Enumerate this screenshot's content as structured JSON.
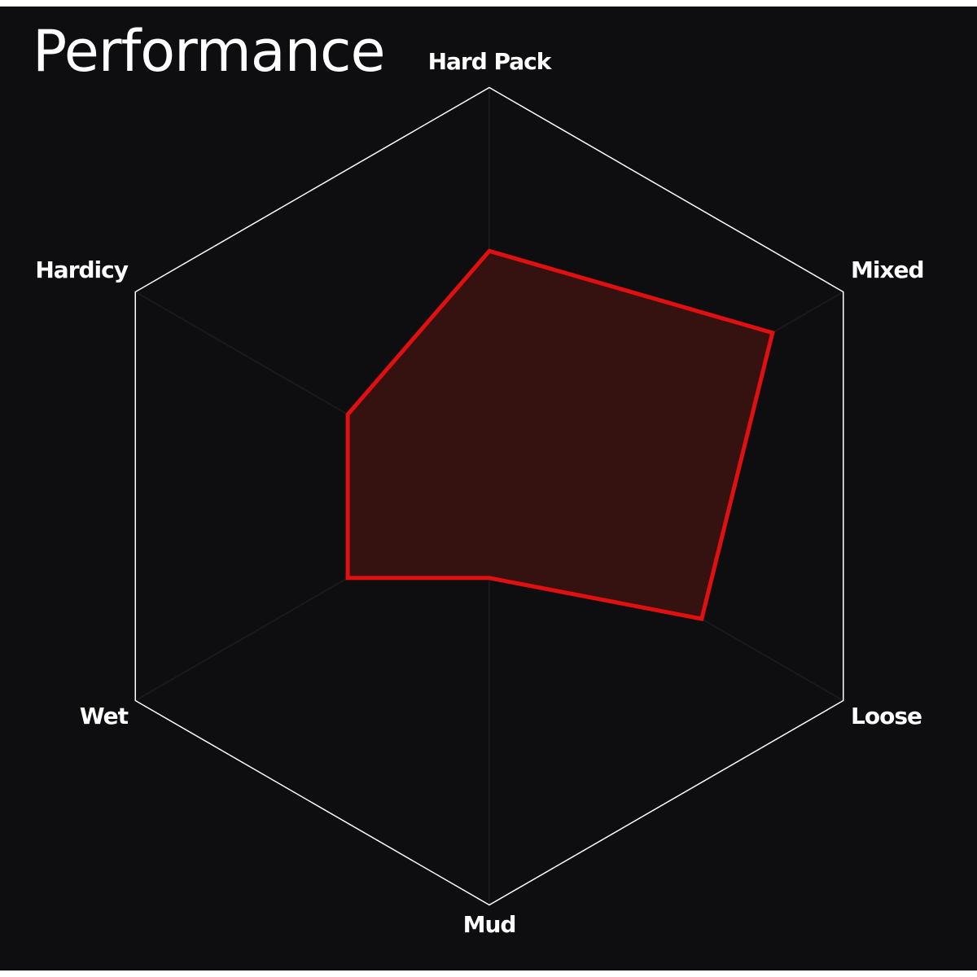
{
  "chart_data": {
    "type": "radar",
    "title": "Performance",
    "axes": [
      "Hard Pack",
      "Mixed",
      "Loose",
      "Mud",
      "Wet",
      "Hardicy"
    ],
    "range": [
      0,
      10
    ],
    "series": [
      {
        "values": [
          6,
          8,
          6,
          2,
          4,
          4
        ]
      }
    ],
    "colors": {
      "background": "#0e0d10",
      "grid": "#ffffff",
      "series_stroke": "#e01010",
      "series_fill": "#35120f"
    }
  }
}
